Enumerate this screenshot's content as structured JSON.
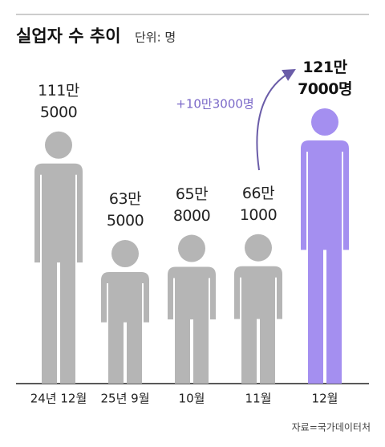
{
  "chart_data": {
    "type": "pictograph",
    "title": "실업자 수 추이",
    "subtitle": "단위: 명",
    "categories": [
      "24년 12월",
      "25년 9월",
      "10월",
      "11월",
      "12월"
    ],
    "values": [
      1115000,
      635000,
      658000,
      661000,
      1217000
    ],
    "value_labels": [
      "111만\n5000",
      "63만\n5000",
      "65만\n8000",
      "66만\n1000",
      "121만\n7000명"
    ],
    "colors": [
      "#b5b5b5",
      "#b5b5b5",
      "#b5b5b5",
      "#b5b5b5",
      "#a48ff0"
    ],
    "annotation": "+10만3000명",
    "source": "자료=국가데이터처"
  }
}
